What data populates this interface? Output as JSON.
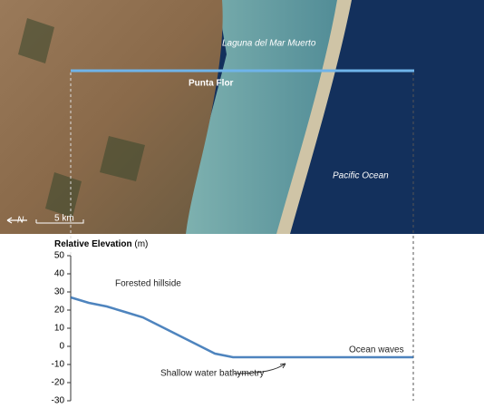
{
  "map": {
    "labels": [
      "Laguna del Mar Muerto",
      "Punta Flor",
      "Pacific Ocean"
    ],
    "north": "N",
    "scale": "5 km"
  },
  "chart_data": {
    "type": "line",
    "title": "Relative Elevation",
    "unit": "(m)",
    "values": [
      27,
      24,
      22,
      19,
      16,
      11,
      6,
      1,
      -4,
      -6,
      -6,
      -6,
      -6,
      -6,
      -6,
      -6,
      -6,
      -6,
      -6,
      -6
    ],
    "color": "#2f6fb3",
    "ylim": [
      -30,
      50
    ],
    "yticks": [
      -30,
      -20,
      -10,
      0,
      10,
      20,
      30,
      40,
      50
    ],
    "annotations": [
      "Forested hillside",
      "Shallow water bathymetry",
      "Ocean waves"
    ]
  }
}
